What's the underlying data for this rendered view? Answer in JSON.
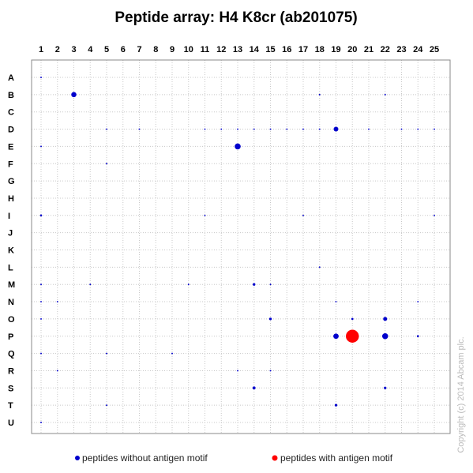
{
  "chart_data": {
    "type": "scatter",
    "title": "Peptide array: H4 K8cr (ab201075)",
    "columns": [
      "1",
      "2",
      "3",
      "4",
      "5",
      "6",
      "7",
      "8",
      "9",
      "10",
      "11",
      "12",
      "13",
      "14",
      "15",
      "16",
      "17",
      "18",
      "19",
      "20",
      "21",
      "22",
      "23",
      "24",
      "25"
    ],
    "rows": [
      "A",
      "B",
      "C",
      "D",
      "E",
      "F",
      "G",
      "H",
      "I",
      "J",
      "K",
      "L",
      "M",
      "N",
      "O",
      "P",
      "Q",
      "R",
      "S",
      "T",
      "U"
    ],
    "grid": true,
    "legend_position": "bottom",
    "series": [
      {
        "name": "peptides without antigen motif",
        "color": "#0000cc",
        "points": [
          {
            "col": 1,
            "row": "A",
            "v": 0.1
          },
          {
            "col": 3,
            "row": "B",
            "v": 1.2
          },
          {
            "col": 18,
            "row": "B",
            "v": 0.1
          },
          {
            "col": 22,
            "row": "B",
            "v": 0.1
          },
          {
            "col": 5,
            "row": "D",
            "v": 0.1
          },
          {
            "col": 7,
            "row": "D",
            "v": 0.1
          },
          {
            "col": 11,
            "row": "D",
            "v": 0.1
          },
          {
            "col": 12,
            "row": "D",
            "v": 0.1
          },
          {
            "col": 13,
            "row": "D",
            "v": 0.1
          },
          {
            "col": 14,
            "row": "D",
            "v": 0.1
          },
          {
            "col": 15,
            "row": "D",
            "v": 0.1
          },
          {
            "col": 16,
            "row": "D",
            "v": 0.1
          },
          {
            "col": 17,
            "row": "D",
            "v": 0.1
          },
          {
            "col": 18,
            "row": "D",
            "v": 0.1
          },
          {
            "col": 19,
            "row": "D",
            "v": 1.0
          },
          {
            "col": 21,
            "row": "D",
            "v": 0.1
          },
          {
            "col": 23,
            "row": "D",
            "v": 0.1
          },
          {
            "col": 24,
            "row": "D",
            "v": 0.1
          },
          {
            "col": 25,
            "row": "D",
            "v": 0.1
          },
          {
            "col": 1,
            "row": "E",
            "v": 0.1
          },
          {
            "col": 13,
            "row": "E",
            "v": 1.6
          },
          {
            "col": 5,
            "row": "F",
            "v": 0.1
          },
          {
            "col": 1,
            "row": "I",
            "v": 0.2
          },
          {
            "col": 11,
            "row": "I",
            "v": 0.1
          },
          {
            "col": 17,
            "row": "I",
            "v": 0.1
          },
          {
            "col": 25,
            "row": "I",
            "v": 0.1
          },
          {
            "col": 18,
            "row": "L",
            "v": 0.1
          },
          {
            "col": 1,
            "row": "M",
            "v": 0.1
          },
          {
            "col": 4,
            "row": "M",
            "v": 0.1
          },
          {
            "col": 10,
            "row": "M",
            "v": 0.1
          },
          {
            "col": 14,
            "row": "M",
            "v": 0.3
          },
          {
            "col": 15,
            "row": "M",
            "v": 0.1
          },
          {
            "col": 1,
            "row": "N",
            "v": 0.1
          },
          {
            "col": 2,
            "row": "N",
            "v": 0.1
          },
          {
            "col": 19,
            "row": "N",
            "v": 0.1
          },
          {
            "col": 24,
            "row": "N",
            "v": 0.1
          },
          {
            "col": 1,
            "row": "O",
            "v": 0.1
          },
          {
            "col": 15,
            "row": "O",
            "v": 0.3
          },
          {
            "col": 20,
            "row": "O",
            "v": 0.2
          },
          {
            "col": 22,
            "row": "O",
            "v": 0.7
          },
          {
            "col": 19,
            "row": "P",
            "v": 1.3
          },
          {
            "col": 22,
            "row": "P",
            "v": 1.6
          },
          {
            "col": 24,
            "row": "P",
            "v": 0.2
          },
          {
            "col": 1,
            "row": "Q",
            "v": 0.1
          },
          {
            "col": 5,
            "row": "Q",
            "v": 0.1
          },
          {
            "col": 9,
            "row": "Q",
            "v": 0.1
          },
          {
            "col": 2,
            "row": "R",
            "v": 0.1
          },
          {
            "col": 13,
            "row": "R",
            "v": 0.1
          },
          {
            "col": 15,
            "row": "R",
            "v": 0.1
          },
          {
            "col": 14,
            "row": "S",
            "v": 0.4
          },
          {
            "col": 22,
            "row": "S",
            "v": 0.3
          },
          {
            "col": 5,
            "row": "T",
            "v": 0.1
          },
          {
            "col": 19,
            "row": "T",
            "v": 0.3
          },
          {
            "col": 1,
            "row": "U",
            "v": 0.1
          }
        ]
      },
      {
        "name": "peptides with antigen motif",
        "color": "#ff0000",
        "points": [
          {
            "col": 20,
            "row": "P",
            "v": 7.5
          }
        ]
      }
    ]
  },
  "watermark": "Copyright (c) 2014  Abcam plc."
}
